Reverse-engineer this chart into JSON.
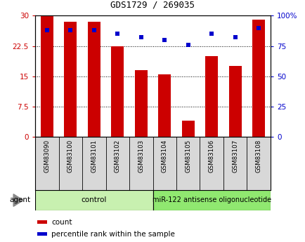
{
  "title": "GDS1729 / 269035",
  "samples": [
    "GSM83090",
    "GSM83100",
    "GSM83101",
    "GSM83102",
    "GSM83103",
    "GSM83104",
    "GSM83105",
    "GSM83106",
    "GSM83107",
    "GSM83108"
  ],
  "counts": [
    30,
    28.5,
    28.5,
    22.5,
    16.5,
    15.5,
    4.0,
    20.0,
    17.5,
    29.0
  ],
  "percentiles": [
    88,
    88,
    88,
    85,
    82,
    80,
    76,
    85,
    82,
    90
  ],
  "bar_color": "#cc0000",
  "dot_color": "#0000cc",
  "ylim_left": [
    0,
    30
  ],
  "ylim_right": [
    0,
    100
  ],
  "yticks_left": [
    0,
    7.5,
    15,
    22.5,
    30
  ],
  "yticks_right": [
    0,
    25,
    50,
    75,
    100
  ],
  "yticklabels_left": [
    "0",
    "7.5",
    "15",
    "22.5",
    "30"
  ],
  "yticklabels_right": [
    "0",
    "25",
    "50",
    "75",
    "100%"
  ],
  "control_samples": 5,
  "control_label": "control",
  "treatment_label": "miR-122 antisense oligonucleotide",
  "agent_label": "agent",
  "legend_count_label": "count",
  "legend_percentile_label": "percentile rank within the sample",
  "sample_bg": "#d8d8d8",
  "control_bg": "#c8f0b0",
  "treatment_bg": "#90e870",
  "bar_width": 0.55,
  "title_fontsize": 9,
  "tick_fontsize": 7.5,
  "label_fontsize": 7.5
}
